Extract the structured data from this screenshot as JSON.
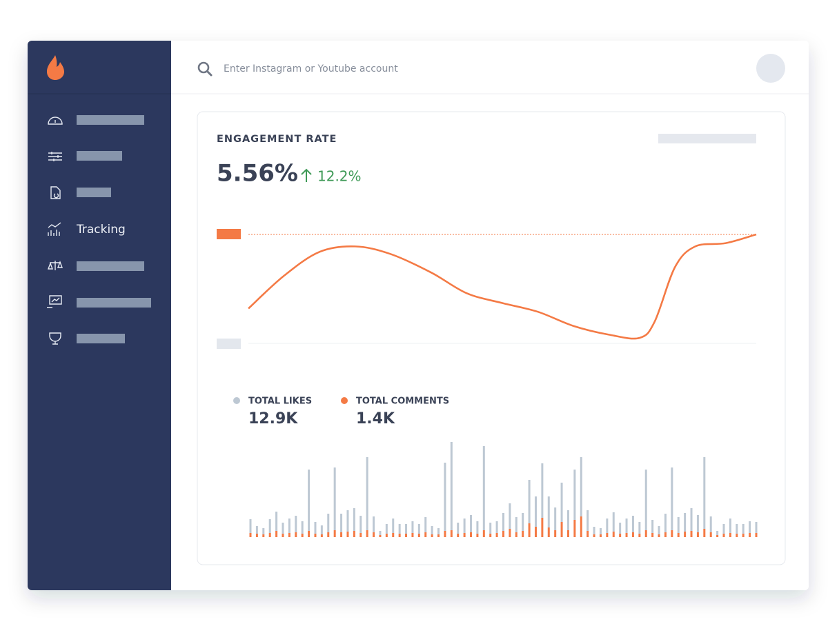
{
  "sidebar": {
    "active_item": "Tracking"
  },
  "search": {
    "placeholder": "Enter Instagram or Youtube account"
  },
  "card": {
    "title": "ENGAGEMENT RATE",
    "value": "5.56%",
    "change": "12.2%"
  },
  "chart_data": [
    {
      "type": "line",
      "x": [
        0,
        7,
        14,
        21,
        28,
        36,
        43,
        50,
        57,
        64,
        71,
        77,
        80,
        84,
        88,
        94,
        100
      ],
      "xlim": [
        0,
        100
      ],
      "ylim": [
        0,
        100
      ],
      "series": [
        {
          "color": "#f47a45",
          "values": [
            32,
            62,
            84,
            89,
            82,
            65,
            46,
            37,
            29,
            16,
            8,
            5,
            20,
            70,
            89,
            92,
            100
          ]
        }
      ]
    },
    {
      "type": "bar",
      "stacked": true,
      "ylim": [
        0,
        140
      ],
      "series": [
        {
          "name": "TOTAL COMMENTS",
          "total": "1.4K",
          "color": "#f47a45",
          "values": [
            6,
            5,
            4,
            6,
            9,
            5,
            6,
            7,
            5,
            9,
            5,
            4,
            7,
            10,
            7,
            8,
            9,
            6,
            10,
            7,
            3,
            5,
            6,
            5,
            5,
            6,
            5,
            7,
            4,
            4,
            9,
            10,
            5,
            6,
            7,
            5,
            10,
            5,
            6,
            9,
            12,
            7,
            9,
            20,
            15,
            28,
            14,
            10,
            22,
            10,
            25,
            30,
            9,
            4,
            4,
            6,
            8,
            5,
            6,
            7,
            5,
            10,
            6,
            4,
            7,
            10,
            6,
            8,
            9,
            7,
            12,
            7,
            3,
            5,
            6,
            5,
            5,
            6,
            6
          ]
        },
        {
          "name": "TOTAL LIKES",
          "total": "12.9K",
          "color": "#bdc8d3",
          "values": [
            20,
            11,
            9,
            20,
            28,
            16,
            21,
            24,
            18,
            89,
            17,
            13,
            27,
            91,
            27,
            31,
            33,
            25,
            106,
            23,
            6,
            14,
            21,
            14,
            14,
            17,
            14,
            22,
            12,
            9,
            99,
            128,
            16,
            21,
            25,
            18,
            122,
            16,
            17,
            26,
            37,
            22,
            26,
            63,
            44,
            79,
            45,
            33,
            57,
            29,
            73,
            86,
            30,
            11,
            9,
            21,
            28,
            16,
            21,
            24,
            17,
            88,
            19,
            12,
            27,
            91,
            23,
            27,
            33,
            25,
            104,
            23,
            6,
            14,
            21,
            14,
            14,
            17,
            16
          ]
        }
      ]
    }
  ]
}
